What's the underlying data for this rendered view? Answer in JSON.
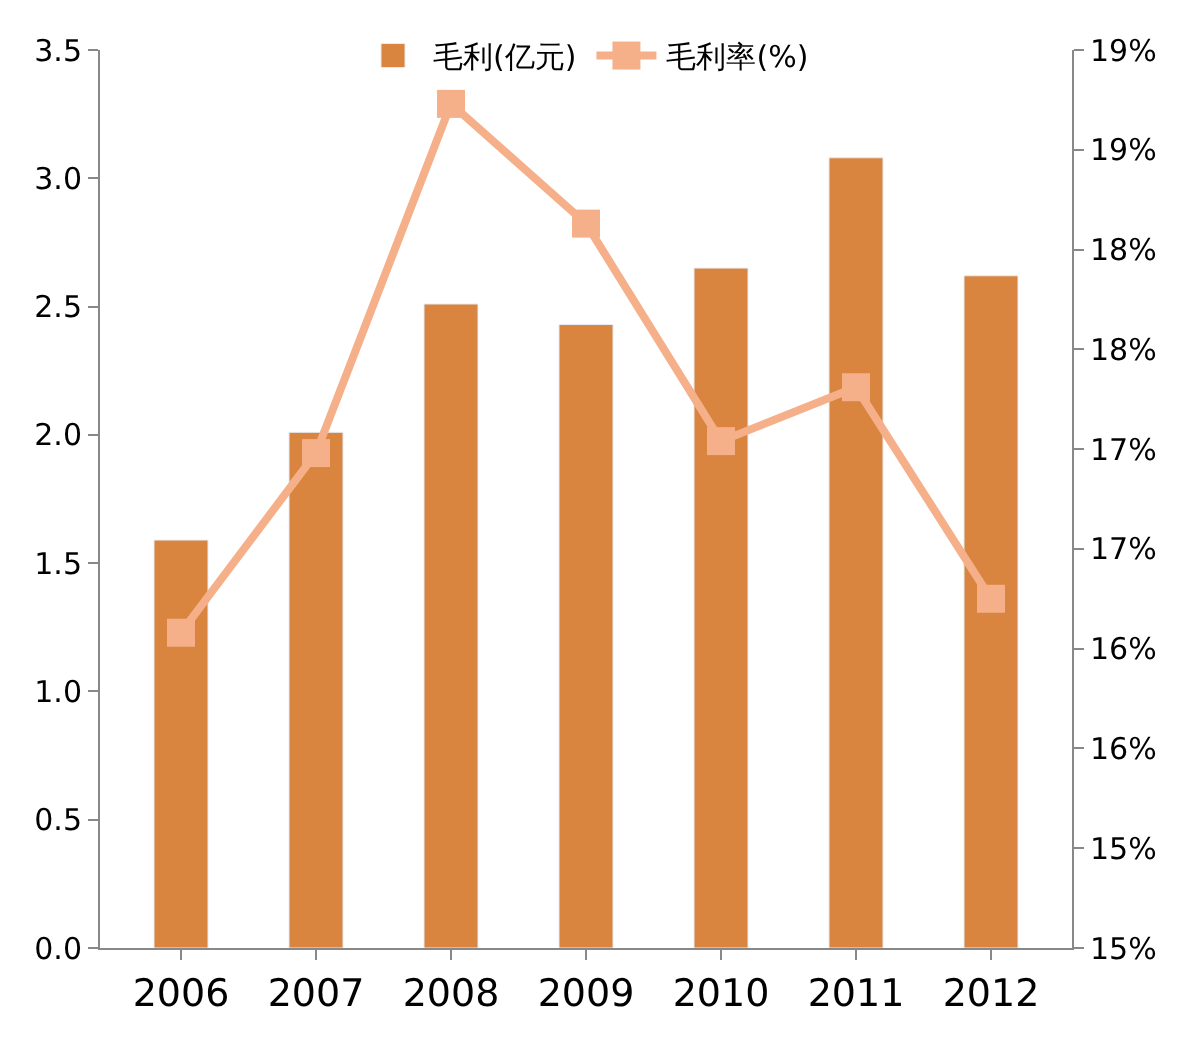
{
  "chart_data": {
    "type": "bar",
    "categories": [
      "2006",
      "2007",
      "2008",
      "2009",
      "2010",
      "2011",
      "2012"
    ],
    "series": [
      {
        "name": "毛利(亿元)",
        "color": "#d9843f",
        "values": [
          1.59,
          2.01,
          2.51,
          2.43,
          2.65,
          3.08,
          2.62
        ]
      },
      {
        "name": "毛利率(%)",
        "type": "line",
        "axis": "y2",
        "color": "#f5b08a",
        "marker": "square",
        "values": [
          16.58,
          17.48,
          19.23,
          18.63,
          17.54,
          17.81,
          16.75
        ]
      }
    ],
    "ylim": [
      0,
      3.5
    ],
    "yticks": [
      {
        "value": 0,
        "label": "0.0"
      },
      0.5,
      {
        "value": 1,
        "label": "1.0"
      },
      1.5,
      {
        "value": 2,
        "label": "2.0"
      },
      2.5,
      {
        "value": 3,
        "label": "3.0"
      },
      3.5
    ],
    "y2lim": [
      15,
      19.5
    ],
    "y2ticks": [
      {
        "value": 15,
        "label": "15%"
      },
      {
        "value": 15.5,
        "label": "15%"
      },
      {
        "value": 16,
        "label": "16%"
      },
      {
        "value": 16.5,
        "label": "16%"
      },
      {
        "value": 17,
        "label": "17%"
      },
      {
        "value": 17.5,
        "label": "17%"
      },
      {
        "value": 18,
        "label": "18%"
      },
      {
        "value": 18.5,
        "label": "18%"
      },
      {
        "value": 19,
        "label": "19%"
      },
      {
        "value": 19.5,
        "label": "19%"
      }
    ],
    "legend": "top"
  }
}
